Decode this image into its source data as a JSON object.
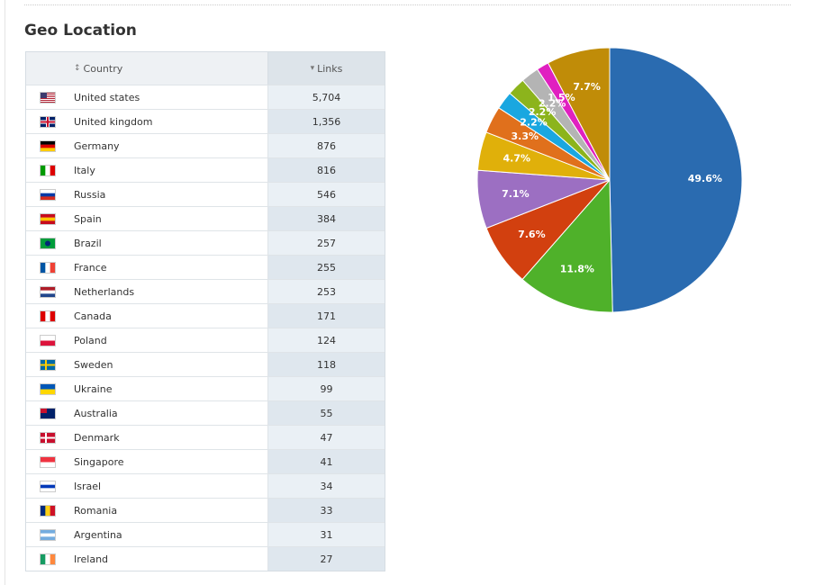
{
  "header": {
    "title": "Geo Location"
  },
  "table": {
    "columns": [
      "Country",
      "Links"
    ],
    "rows": [
      [
        "United states",
        "5,704"
      ],
      [
        "United kingdom",
        "1,356"
      ],
      [
        "Germany",
        "876"
      ],
      [
        "Italy",
        "816"
      ],
      [
        "Russia",
        "546"
      ],
      [
        "Spain",
        "384"
      ],
      [
        "Brazil",
        "257"
      ],
      [
        "France",
        "255"
      ],
      [
        "Netherlands",
        "253"
      ],
      [
        "Canada",
        "171"
      ],
      [
        "Poland",
        "124"
      ],
      [
        "Sweden",
        "118"
      ],
      [
        "Ukraine",
        "99"
      ],
      [
        "Australia",
        "55"
      ],
      [
        "Denmark",
        "47"
      ],
      [
        "Singapore",
        "41"
      ],
      [
        "Israel",
        "34"
      ],
      [
        "Romania",
        "33"
      ],
      [
        "Argentina",
        "31"
      ],
      [
        "Ireland",
        "27"
      ]
    ]
  },
  "chart_data": {
    "type": "pie",
    "values": [
      49.6,
      11.8,
      7.6,
      7.1,
      4.7,
      3.3,
      2.2,
      2.2,
      2.2,
      1.5,
      7.7
    ],
    "value_labels": [
      "49.6%",
      "11.8%",
      "7.6%",
      "7.1%",
      "4.7%",
      "3.3%",
      "2.2%",
      "2.2%",
      "2.2%",
      "1.5%",
      "7.7%"
    ],
    "colors": [
      "#2a6bb0",
      "#4fb12a",
      "#d2400f",
      "#9c6fc2",
      "#e0b00a",
      "#e0701c",
      "#1aa7e0",
      "#8cb41c",
      "#b4b4b4",
      "#e020c0",
      "#c08c08"
    ]
  }
}
